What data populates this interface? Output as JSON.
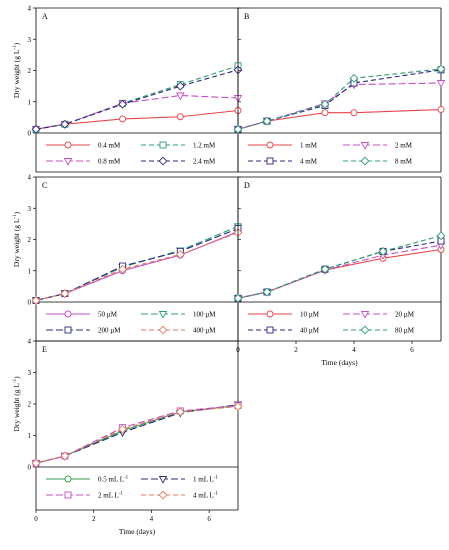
{
  "chart_data": [
    {
      "type": "line",
      "panel_label": "A",
      "x": [
        0,
        1,
        3,
        5,
        7
      ],
      "ylabel": "Dry weight (g L",
      "ylabel_sup": "-1",
      "ylabel_end": ")",
      "ylim": [
        0,
        4
      ],
      "yticks": [
        "0",
        "1",
        "2",
        "3",
        "4"
      ],
      "series": [
        {
          "name": "0.4 mM",
          "values": [
            0.12,
            0.28,
            0.45,
            0.52,
            0.72
          ],
          "color": "#e8434a",
          "marker": "circle",
          "dash": ""
        },
        {
          "name": "1.2 mM",
          "values": [
            0.12,
            0.28,
            0.95,
            1.55,
            2.15
          ],
          "color": "#2e9c74",
          "marker": "square",
          "dash": "5,3"
        },
        {
          "name": "0.8 mM",
          "values": [
            0.12,
            0.28,
            0.95,
            1.2,
            1.12
          ],
          "color": "#c44fc4",
          "marker": "triangle",
          "dash": "7,3"
        },
        {
          "name": "2.4 mM",
          "values": [
            0.12,
            0.28,
            0.92,
            1.5,
            2.02
          ],
          "color": "#2a2a7a",
          "marker": "diamond",
          "dash": "5,3"
        }
      ]
    },
    {
      "type": "line",
      "panel_label": "B",
      "x": [
        0,
        1,
        3,
        4,
        7
      ],
      "ylim": [
        0,
        4
      ],
      "series": [
        {
          "name": "1 mM",
          "values": [
            0.12,
            0.38,
            0.65,
            0.65,
            0.75
          ],
          "color": "#e8434a",
          "marker": "circle",
          "dash": ""
        },
        {
          "name": "2 mM",
          "values": [
            0.12,
            0.38,
            0.95,
            1.55,
            1.6
          ],
          "color": "#c44fc4",
          "marker": "triangle",
          "dash": "7,3"
        },
        {
          "name": "4 mM",
          "values": [
            0.12,
            0.38,
            0.88,
            1.6,
            2.02
          ],
          "color": "#2a2a7a",
          "marker": "square",
          "dash": "5,3"
        },
        {
          "name": "8 mM",
          "values": [
            0.12,
            0.38,
            0.92,
            1.75,
            2.05
          ],
          "color": "#2e9c74",
          "marker": "diamond",
          "dash": "5,3"
        }
      ]
    },
    {
      "type": "line",
      "panel_label": "C",
      "x": [
        0,
        1,
        3,
        5,
        7
      ],
      "ylabel": "Dry weight (g L",
      "ylabel_sup": "-1",
      "ylabel_end": ")",
      "ylim": [
        0,
        4
      ],
      "yticks": [
        "0",
        "1",
        "2",
        "3",
        "4"
      ],
      "series": [
        {
          "name": "50 µM",
          "values": [
            0.05,
            0.27,
            1.0,
            1.5,
            2.25
          ],
          "color": "#c44fc4",
          "marker": "circle",
          "dash": ""
        },
        {
          "name": "100 µM",
          "values": [
            0.05,
            0.27,
            1.12,
            1.65,
            2.42
          ],
          "color": "#2e9c74",
          "marker": "triangle",
          "dash": "7,3"
        },
        {
          "name": "200 µM",
          "values": [
            0.05,
            0.27,
            1.15,
            1.62,
            2.35
          ],
          "color": "#2a2a7a",
          "marker": "square",
          "dash": "7,3"
        },
        {
          "name": "400 µM",
          "values": [
            0.05,
            0.27,
            1.05,
            1.52,
            2.22
          ],
          "color": "#e07a5f",
          "marker": "diamond",
          "dash": "5,3"
        }
      ]
    },
    {
      "type": "line",
      "panel_label": "D",
      "x": [
        0,
        1,
        3,
        5,
        7
      ],
      "ylim": [
        0,
        4
      ],
      "series": [
        {
          "name": "10 µM",
          "values": [
            0.12,
            0.32,
            1.02,
            1.4,
            1.68
          ],
          "color": "#e8434a",
          "marker": "circle",
          "dash": ""
        },
        {
          "name": "20 µM",
          "values": [
            0.12,
            0.32,
            1.02,
            1.5,
            1.82
          ],
          "color": "#c44fc4",
          "marker": "triangle",
          "dash": "7,3"
        },
        {
          "name": "40 µM",
          "values": [
            0.12,
            0.32,
            1.05,
            1.62,
            1.95
          ],
          "color": "#2a2a7a",
          "marker": "square",
          "dash": "5,3"
        },
        {
          "name": "80 µM",
          "values": [
            0.12,
            0.32,
            1.05,
            1.62,
            2.12
          ],
          "color": "#2e9c74",
          "marker": "diamond",
          "dash": "5,3"
        }
      ]
    },
    {
      "type": "line",
      "panel_label": "E",
      "x": [
        0,
        1,
        3,
        5,
        7
      ],
      "ylabel": "Dry weight (g L",
      "ylabel_sup": "-1",
      "ylabel_end": ")",
      "ylim": [
        0,
        4
      ],
      "yticks": [
        "0",
        "1",
        "2",
        "3",
        "4"
      ],
      "series": [
        {
          "name": "0.5 mL L",
          "name_sup": "-1",
          "values": [
            0.12,
            0.35,
            1.15,
            1.75,
            1.95
          ],
          "color": "#2e9c4e",
          "marker": "circle",
          "dash": ""
        },
        {
          "name": "1 mL L",
          "name_sup": "-1",
          "values": [
            0.12,
            0.35,
            1.1,
            1.72,
            1.98
          ],
          "color": "#2a2a7a",
          "marker": "triangle",
          "dash": "7,3"
        },
        {
          "name": "2 mL L",
          "name_sup": "-1",
          "values": [
            0.12,
            0.35,
            1.25,
            1.78,
            1.95
          ],
          "color": "#c44fc4",
          "marker": "square",
          "dash": "7,3"
        },
        {
          "name": "4 mL L",
          "name_sup": "-1",
          "values": [
            0.12,
            0.35,
            1.2,
            1.75,
            1.92
          ],
          "color": "#e07a5f",
          "marker": "diamond",
          "dash": "5,3"
        }
      ]
    }
  ],
  "xaxis": {
    "label": "Time (days)",
    "ticks": [
      "0",
      "2",
      "4",
      "6"
    ],
    "xlim": [
      0,
      7
    ]
  },
  "colors": {
    "axis": "#000000",
    "background": "#ffffff"
  }
}
